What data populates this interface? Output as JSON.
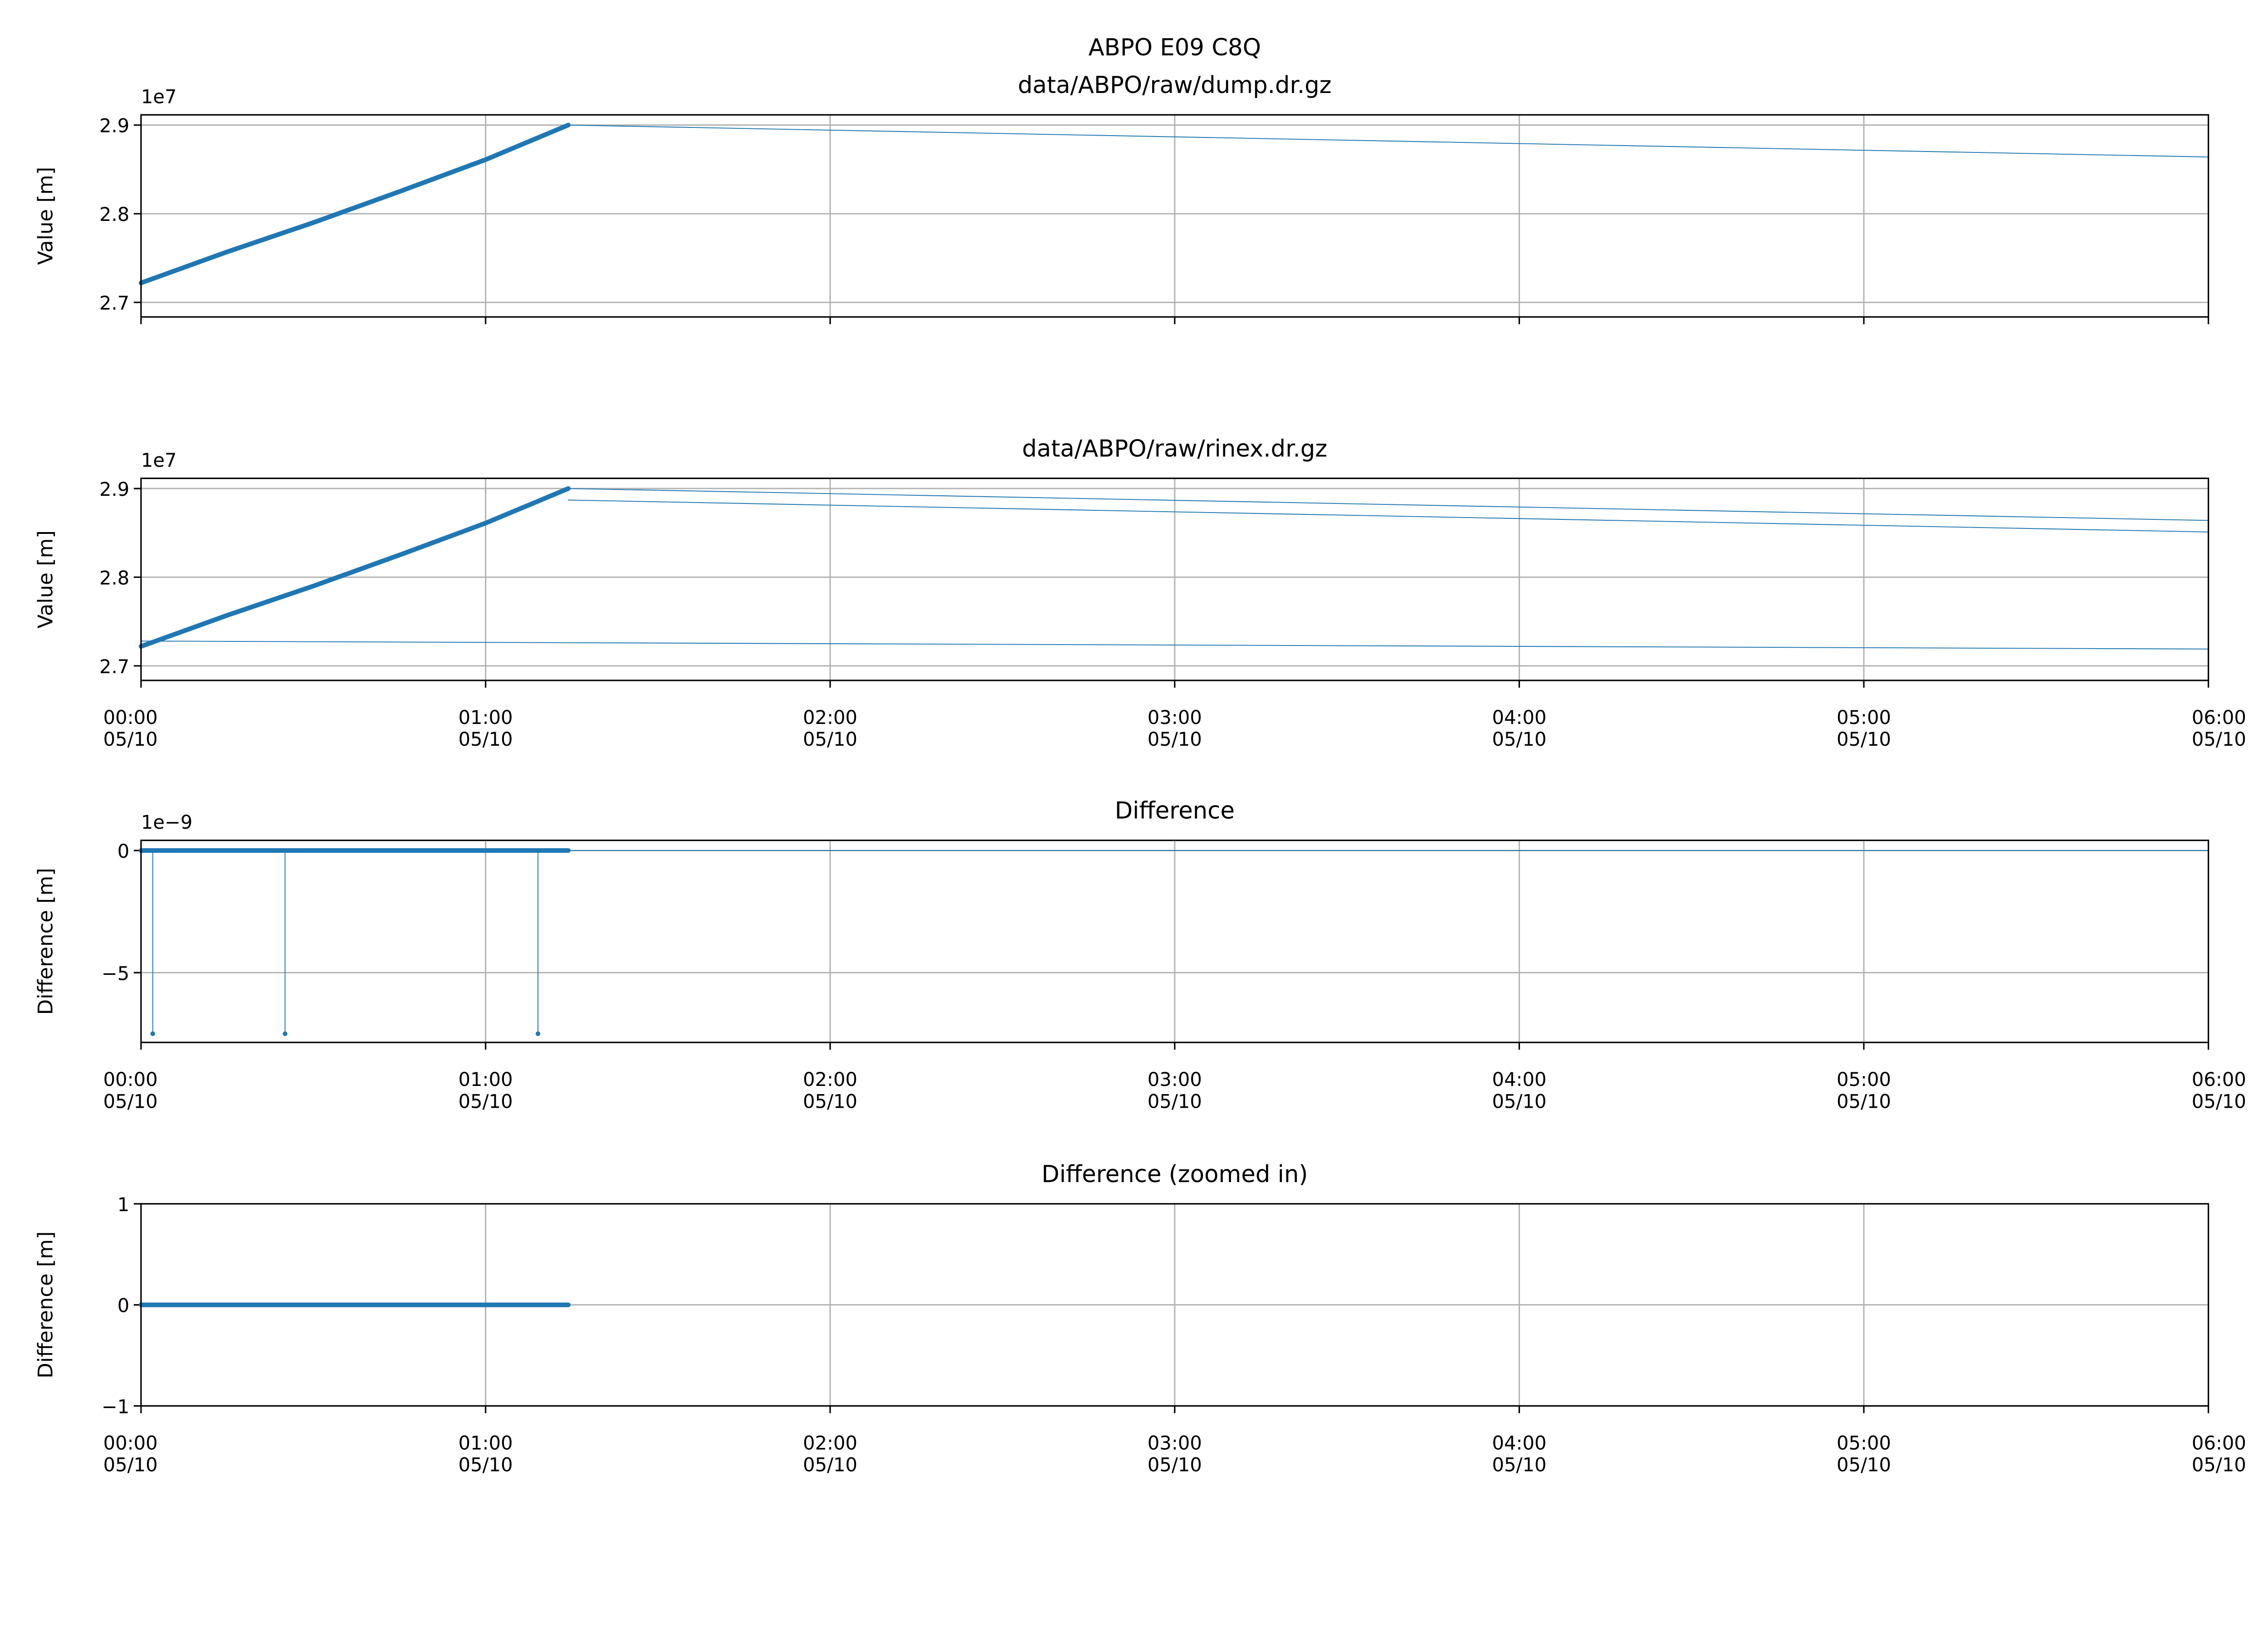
{
  "figure_title": "ABPO E09 C8Q",
  "colors": {
    "series": "#1f77b4",
    "grid": "#b0b0b0"
  },
  "chart_data": [
    {
      "type": "line",
      "title": "data/ABPO/raw/dump.dr.gz",
      "ylabel": "Value [m]",
      "offset_text": "1e7",
      "x_unit": "hours since 05/10 00:00",
      "xlim": [
        0,
        6
      ],
      "ylim": [
        2.6836,
        2.9115
      ],
      "yticks": [
        "2.7",
        "2.8",
        "2.9"
      ],
      "ytick_values": [
        2.7,
        2.8,
        2.9
      ],
      "xticks_labels_shown": false,
      "grid": true,
      "series": [
        {
          "style": "thick",
          "x": [
            0,
            0.25,
            0.5,
            0.75,
            1.0,
            1.24
          ],
          "y": [
            2.722,
            2.757,
            2.79,
            2.825,
            2.861,
            2.9
          ]
        },
        {
          "style": "thin",
          "x": [
            1.24,
            6
          ],
          "y": [
            2.9,
            2.864
          ]
        }
      ]
    },
    {
      "type": "line",
      "title": "data/ABPO/raw/rinex.dr.gz",
      "ylabel": "Value [m]",
      "offset_text": "1e7",
      "xlim": [
        0,
        6
      ],
      "ylim": [
        2.6836,
        2.9115
      ],
      "yticks": [
        "2.7",
        "2.8",
        "2.9"
      ],
      "ytick_values": [
        2.7,
        2.8,
        2.9
      ],
      "grid": true,
      "series": [
        {
          "style": "thick",
          "x": [
            0,
            0.25,
            0.5,
            0.75,
            1.0,
            1.24
          ],
          "y": [
            2.722,
            2.757,
            2.79,
            2.825,
            2.861,
            2.9
          ]
        },
        {
          "style": "thin",
          "x": [
            1.24,
            6
          ],
          "y": [
            2.9,
            2.864
          ]
        },
        {
          "style": "thin",
          "x": [
            1.24,
            6
          ],
          "y": [
            2.887,
            2.851
          ]
        },
        {
          "style": "thin",
          "x": [
            0,
            6
          ],
          "y": [
            2.728,
            2.719
          ]
        }
      ]
    },
    {
      "type": "line",
      "title": "Difference",
      "ylabel": "Difference [m]",
      "offset_text": "1e−9",
      "xlim": [
        0,
        6
      ],
      "ylim": [
        -7.857,
        0.417
      ],
      "yticks": [
        "−5",
        "0"
      ],
      "ytick_values": [
        -5,
        0
      ],
      "grid": true,
      "series": [
        {
          "style": "thick",
          "x": [
            0,
            1.24
          ],
          "y": [
            0,
            0
          ]
        },
        {
          "style": "thin",
          "x": [
            0,
            6
          ],
          "y": [
            0,
            0
          ]
        },
        {
          "style": "spike",
          "x": [
            0.034,
            0.418,
            1.152
          ],
          "y": [
            -7.5,
            -7.5,
            -7.5
          ]
        }
      ]
    },
    {
      "type": "line",
      "title": "Difference (zoomed in)",
      "ylabel": "Difference [m]",
      "offset_text": "",
      "xlim": [
        0,
        6
      ],
      "ylim": [
        -1,
        1
      ],
      "yticks": [
        "−1",
        "0",
        "1"
      ],
      "ytick_values": [
        -1,
        0,
        1
      ],
      "grid": true,
      "series": [
        {
          "style": "thick",
          "x": [
            0,
            1.24
          ],
          "y": [
            0,
            0
          ]
        }
      ]
    }
  ],
  "xtick_times": [
    "00:00",
    "01:00",
    "02:00",
    "03:00",
    "04:00",
    "05:00",
    "06:00"
  ],
  "xtick_dates": [
    "05/10",
    "05/10",
    "05/10",
    "05/10",
    "05/10",
    "05/10",
    "05/10"
  ]
}
